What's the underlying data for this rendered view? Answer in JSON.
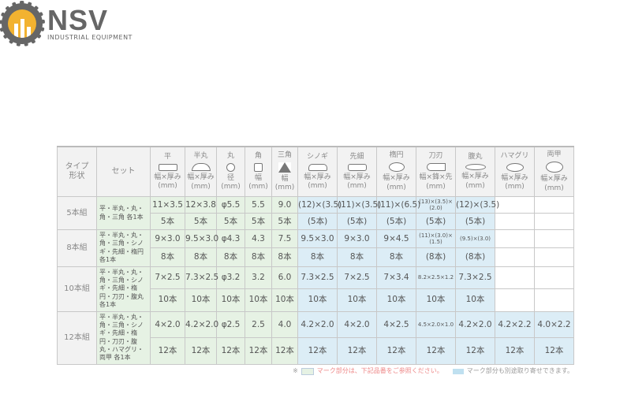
{
  "logo": {
    "name": "NSV",
    "tagline": "INDUSTRIAL EQUIPMENT"
  },
  "header": {
    "type_label": "タイプ\n形状",
    "set_label": "セット",
    "columns": [
      {
        "name": "平",
        "dim": "幅×厚み",
        "unit": "(mm)",
        "shape": "flat"
      },
      {
        "name": "半丸",
        "dim": "幅×厚み",
        "unit": "(mm)",
        "shape": "half-round"
      },
      {
        "name": "丸",
        "dim": "径",
        "unit": "(mm)",
        "shape": "round"
      },
      {
        "name": "角",
        "dim": "幅",
        "unit": "(mm)",
        "shape": "square"
      },
      {
        "name": "三角",
        "dim": "幅",
        "unit": "(mm)",
        "shape": "triangle"
      },
      {
        "name": "シノギ",
        "dim": "幅×厚み",
        "unit": "(mm)",
        "shape": "knife-edge"
      },
      {
        "name": "先細",
        "dim": "幅×厚み",
        "unit": "(mm)",
        "shape": "tapered"
      },
      {
        "name": "楕円",
        "dim": "幅×厚み",
        "unit": "(mm)",
        "shape": "oval"
      },
      {
        "name": "刀刃",
        "dim": "幅×鋒×先",
        "unit": "(mm)",
        "shape": "blade"
      },
      {
        "name": "腹丸",
        "dim": "幅×厚み",
        "unit": "(mm)",
        "shape": "barrette"
      },
      {
        "name": "ハマグリ",
        "dim": "幅×厚み",
        "unit": "(mm)",
        "shape": "clam"
      },
      {
        "name": "両甲",
        "dim": "幅×厚み",
        "unit": "(mm)",
        "shape": "double-convex"
      }
    ]
  },
  "rows": [
    {
      "label": "5本組",
      "set": "平・半丸・丸・角・三角 各1本",
      "sizes": [
        "11×3.5",
        "12×3.8",
        "φ5.5",
        "5.5",
        "9.0",
        "(12)×(3.5)",
        "(11)×(3.5)",
        "(11)×(6.5)",
        "(13)×(3.5)×(2.0)",
        "(12)×(3.5)",
        "",
        ""
      ],
      "counts": [
        "5本",
        "5本",
        "5本",
        "5本",
        "5本",
        "(5本)",
        "(5本)",
        "(5本)",
        "(5本)",
        "(5本)",
        "",
        ""
      ]
    },
    {
      "label": "8本組",
      "set": "平・半丸・丸・角・三角・シノギ・先細・楕円 各1本",
      "sizes": [
        "9×3.0",
        "9.5×3.0",
        "φ4.3",
        "4.3",
        "7.5",
        "9.5×3.0",
        "9×3.0",
        "9×4.5",
        "(11)×(3.0)×(1.5)",
        "(9.5)×(3.0)",
        "",
        ""
      ],
      "counts": [
        "8本",
        "8本",
        "8本",
        "8本",
        "8本",
        "8本",
        "8本",
        "8本",
        "(8本)",
        "(8本)",
        "",
        ""
      ]
    },
    {
      "label": "10本組",
      "set": "平・半丸・丸・角・三角・シノギ・先細・楕円・刀刃・腹丸 各1本",
      "sizes": [
        "7×2.5",
        "7.3×2.5",
        "φ3.2",
        "3.2",
        "6.0",
        "7.3×2.5",
        "7×2.5",
        "7×3.4",
        "8.2×2.5×1.2",
        "7.3×2.5",
        "",
        ""
      ],
      "counts": [
        "10本",
        "10本",
        "10本",
        "10本",
        "10本",
        "10本",
        "10本",
        "10本",
        "10本",
        "10本",
        "",
        ""
      ]
    },
    {
      "label": "12本組",
      "set": "平・半丸・丸・角・三角・シノギ・先細・楕円・刀刃・腹丸・ハマグリ・両甲 各1本",
      "sizes": [
        "4×2.0",
        "4.2×2.0",
        "φ2.5",
        "2.5",
        "4.0",
        "4.2×2.0",
        "4×2.0",
        "4×2.5",
        "4.5×2.0×1.0",
        "4.2×2.0",
        "4.2×2.2",
        "4.0×2.2"
      ],
      "counts": [
        "12本",
        "12本",
        "12本",
        "12本",
        "12本",
        "12本",
        "12本",
        "12本",
        "12本",
        "12本",
        "12本",
        "12本"
      ]
    }
  ],
  "note": {
    "prefix": "※",
    "green_text": "マーク部分は、下記品番をご参照ください。",
    "blue_text": "マーク部分も別途取り寄せできます。"
  },
  "colors": {
    "green": "#e6f2e4",
    "blue": "#dcedf6",
    "note": "#e88888"
  }
}
